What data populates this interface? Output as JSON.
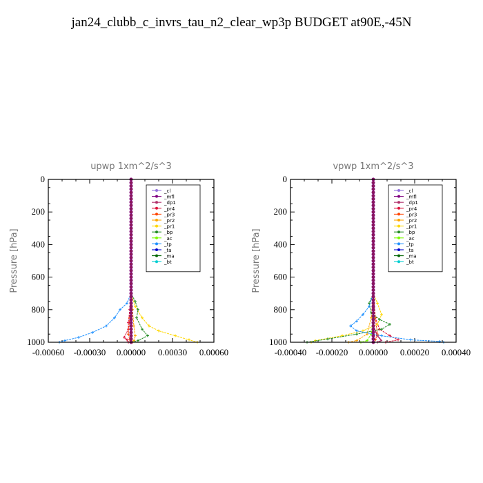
{
  "title": "jan24_clubb_c_invrs_tau_n2_clear_wp3p  BUDGET at90E,-45N",
  "chart_data": [
    {
      "type": "line",
      "title": "upwp   1xm^2/s^3",
      "ylabel": "Pressure [hPa]",
      "xlim": [
        -0.0006,
        0.0006
      ],
      "ylim": [
        1000,
        0
      ],
      "xticks": [
        "-0.00060",
        "-0.00030",
        "0.00000",
        "0.00030",
        "0.00060"
      ],
      "yticks": [
        "0",
        "200",
        "400",
        "600",
        "800",
        "1000"
      ],
      "legend": "upper-right",
      "series": [
        {
          "name": "_cl",
          "color": "#9370db",
          "x": [
            0,
            0,
            0,
            0,
            0,
            0,
            0
          ],
          "y": [
            0,
            200,
            400,
            600,
            800,
            900,
            1000
          ]
        },
        {
          "name": "_mfl",
          "color": "#800080",
          "x": [
            0,
            0,
            0,
            0,
            0,
            0,
            0
          ],
          "y": [
            0,
            200,
            400,
            600,
            800,
            900,
            1000
          ]
        },
        {
          "name": "_dp1",
          "color": "#b0306a",
          "x": [
            0,
            0,
            0,
            0,
            0,
            0,
            0
          ],
          "y": [
            0,
            200,
            400,
            600,
            800,
            900,
            1000
          ]
        },
        {
          "name": "_pr4",
          "color": "#dc143c",
          "x": [
            0,
            0,
            -1e-05,
            -2e-05,
            -2e-05,
            -5e-05,
            -3e-05,
            -2e-05
          ],
          "y": [
            0,
            700,
            800,
            880,
            920,
            970,
            985,
            1000
          ]
        },
        {
          "name": "_pr3",
          "color": "#ff4500",
          "x": [
            0,
            0,
            -1e-05,
            -2e-05,
            -1e-05,
            0
          ],
          "y": [
            0,
            700,
            850,
            950,
            985,
            1000
          ]
        },
        {
          "name": "_pr2",
          "color": "#ffa500",
          "x": [
            0,
            0,
            1e-05,
            2e-05,
            3e-05,
            2e-05,
            1e-05
          ],
          "y": [
            0,
            700,
            800,
            900,
            960,
            990,
            1000
          ]
        },
        {
          "name": "_pr1",
          "color": "#ffd700",
          "x": [
            0,
            0,
            3e-05,
            8e-05,
            0.00013,
            0.0002,
            0.00032,
            0.00042,
            0.00048
          ],
          "y": [
            0,
            700,
            780,
            850,
            900,
            930,
            960,
            985,
            1000
          ]
        },
        {
          "name": "_bp",
          "color": "#228b22",
          "x": [
            0,
            0,
            3e-05,
            5e-05,
            4e-05,
            8e-05,
            0.00012,
            5e-05,
            0
          ],
          "y": [
            0,
            700,
            750,
            800,
            850,
            920,
            960,
            990,
            1000
          ]
        },
        {
          "name": "_ac",
          "color": "#7cfc00",
          "x": [
            0,
            0,
            0,
            0,
            0
          ],
          "y": [
            0,
            200,
            500,
            800,
            1000
          ]
        },
        {
          "name": "_tp",
          "color": "#1e90ff",
          "x": [
            0,
            0,
            -3e-05,
            -8e-05,
            -0.00012,
            -0.00018,
            -0.00028,
            -0.00038,
            -0.00048,
            -0.00052
          ],
          "y": [
            0,
            700,
            760,
            800,
            850,
            900,
            940,
            970,
            990,
            1000
          ]
        },
        {
          "name": "_ta",
          "color": "#0000cd",
          "x": [
            0,
            0,
            0,
            0,
            0
          ],
          "y": [
            0,
            200,
            500,
            800,
            1000
          ]
        },
        {
          "name": "_ma",
          "color": "#006400",
          "x": [
            0,
            0,
            0,
            0,
            0
          ],
          "y": [
            0,
            200,
            500,
            800,
            1000
          ]
        },
        {
          "name": "_bt",
          "color": "#00ced1",
          "x": [
            0,
            0,
            0,
            0,
            0
          ],
          "y": [
            0,
            200,
            500,
            800,
            1000
          ]
        }
      ]
    },
    {
      "type": "line",
      "title": "vpwp   1xm^2/s^3",
      "ylabel": "Pressure [hPa]",
      "xlim": [
        -0.0004,
        0.0004
      ],
      "ylim": [
        1000,
        0
      ],
      "xticks": [
        "-0.00040",
        "-0.00020",
        "0.00000",
        "0.00020",
        "0.00040"
      ],
      "yticks": [
        "0",
        "200",
        "400",
        "600",
        "800",
        "1000"
      ],
      "legend": "upper-right",
      "series": [
        {
          "name": "_cl",
          "color": "#9370db",
          "x": [
            0,
            0,
            0,
            0,
            0,
            0,
            0
          ],
          "y": [
            0,
            200,
            400,
            600,
            800,
            900,
            1000
          ]
        },
        {
          "name": "_mfl",
          "color": "#800080",
          "x": [
            0,
            0,
            0,
            0,
            0,
            0,
            0
          ],
          "y": [
            0,
            200,
            400,
            600,
            800,
            900,
            1000
          ]
        },
        {
          "name": "_dp1",
          "color": "#b0306a",
          "x": [
            0,
            0,
            0,
            0,
            2e-05,
            4e-05,
            2e-05
          ],
          "y": [
            0,
            200,
            600,
            900,
            960,
            990,
            1000
          ]
        },
        {
          "name": "_pr4",
          "color": "#dc143c",
          "x": [
            0,
            0,
            1e-05,
            3e-05,
            8e-05,
            0.00012,
            6e-05
          ],
          "y": [
            0,
            700,
            850,
            920,
            960,
            985,
            1000
          ]
        },
        {
          "name": "_pr3",
          "color": "#ff4500",
          "x": [
            0,
            0,
            1e-05,
            2e-05,
            1e-05,
            0
          ],
          "y": [
            0,
            700,
            850,
            950,
            985,
            1000
          ]
        },
        {
          "name": "_pr2",
          "color": "#ffa500",
          "x": [
            0,
            0,
            -1e-05,
            -3e-05,
            -8e-05,
            -0.00012
          ],
          "y": [
            0,
            700,
            850,
            950,
            990,
            1000
          ]
        },
        {
          "name": "_pr1",
          "color": "#ffd700",
          "x": [
            0,
            0,
            2e-05,
            4e-05,
            2e-05,
            -5e-05,
            -0.00015,
            -0.00028,
            -0.0003
          ],
          "y": [
            0,
            700,
            760,
            830,
            890,
            930,
            960,
            990,
            1000
          ]
        },
        {
          "name": "_bp",
          "color": "#228b22",
          "x": [
            0,
            0,
            -2e-05,
            -1e-05,
            3e-05,
            8e-05,
            4e-05,
            -8e-05,
            -0.00022,
            -0.00032
          ],
          "y": [
            0,
            700,
            760,
            820,
            860,
            890,
            920,
            950,
            980,
            1000
          ]
        },
        {
          "name": "_ac",
          "color": "#7cfc00",
          "x": [
            0,
            0,
            0,
            -1e-05,
            -3e-05,
            -6e-05
          ],
          "y": [
            0,
            700,
            850,
            950,
            990,
            1000
          ]
        },
        {
          "name": "_tp",
          "color": "#1e90ff",
          "x": [
            0,
            0,
            -2e-05,
            -5e-05,
            -8e-05,
            -0.00011,
            -8e-05,
            4e-05,
            0.00018,
            0.00032,
            0.00034
          ],
          "y": [
            0,
            700,
            780,
            830,
            870,
            900,
            930,
            960,
            985,
            995,
            1000
          ]
        },
        {
          "name": "_ta",
          "color": "#0000cd",
          "x": [
            0,
            0,
            0,
            0,
            0
          ],
          "y": [
            0,
            200,
            500,
            800,
            1000
          ]
        },
        {
          "name": "_ma",
          "color": "#006400",
          "x": [
            0,
            0,
            0,
            0,
            0
          ],
          "y": [
            0,
            200,
            500,
            800,
            1000
          ]
        },
        {
          "name": "_bt",
          "color": "#00ced1",
          "x": [
            0,
            0,
            0,
            0,
            0
          ],
          "y": [
            0,
            200,
            500,
            800,
            1000
          ]
        }
      ]
    }
  ]
}
